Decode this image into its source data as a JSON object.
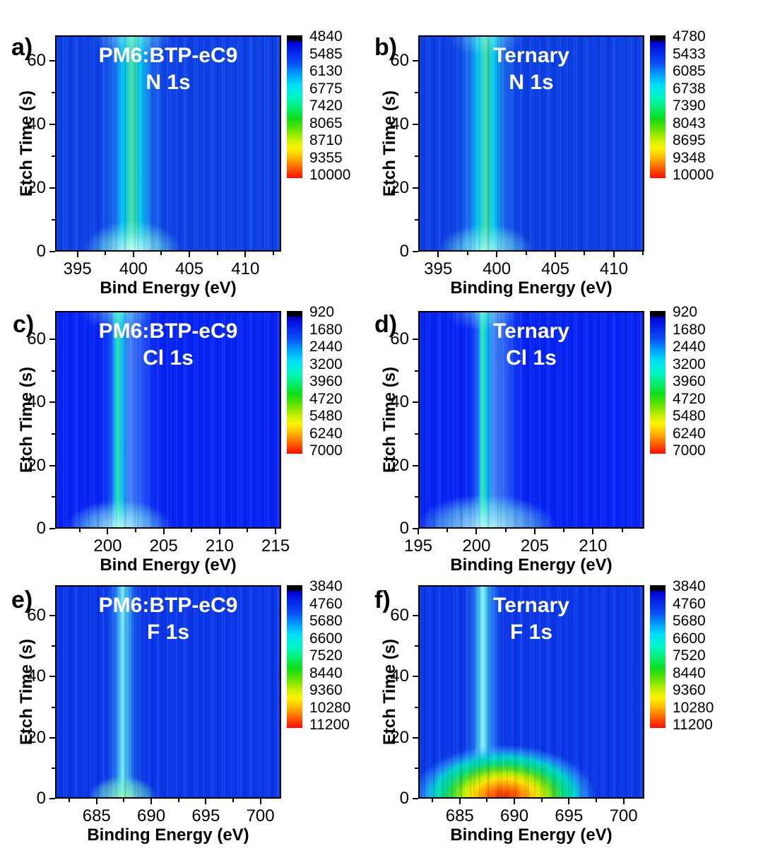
{
  "figure_type": "XPS depth-profile heatmap grid (6 panels)",
  "chart_data": [
    {
      "panel_label": "a)",
      "type": "heatmap",
      "title_line1": "PM6:BTP-eC9",
      "title_line2": "N 1s",
      "xlabel": "Bind Energy (eV)",
      "ylabel": "Etch Time (s)",
      "xlim": [
        393.0,
        413.2
      ],
      "xticks": [
        395,
        400,
        405,
        410
      ],
      "ylim": [
        0,
        68
      ],
      "yticks": [
        0,
        20,
        40,
        60
      ],
      "colorbar_ticks": [
        "4840",
        "5485",
        "6130",
        "6775",
        "7420",
        "8065",
        "8710",
        "9355",
        "10000"
      ],
      "colorbar_range": [
        4840,
        10000
      ],
      "palette": "blue(low) to cyan to green to yellow to orange to red(high), black cap at top of bar",
      "feature_band": {
        "center_ev": 399.8,
        "halo_width_ev": 4,
        "note": "cyan band with green core at all etch times, brightest pale-cyan near etch time 0-8 s"
      }
    },
    {
      "panel_label": "b)",
      "type": "heatmap",
      "title_line1": "Ternary",
      "title_line2": "N 1s",
      "xlabel": "Binding Energy (eV)",
      "ylabel": "Etch Time (s)",
      "xlim": [
        393.3,
        412.6
      ],
      "xticks": [
        395,
        400,
        405,
        410
      ],
      "ylim": [
        0,
        68
      ],
      "yticks": [
        0,
        20,
        40,
        60
      ],
      "colorbar_ticks": [
        "4780",
        "5433",
        "6085",
        "6738",
        "7390",
        "8043",
        "8695",
        "9348",
        "10000"
      ],
      "colorbar_range": [
        4780,
        10000
      ],
      "palette": "blue(low) to cyan to green to yellow to orange to red(high), black cap at top of bar",
      "feature_band": {
        "center_ev": 399.0,
        "halo_width_ev": 4,
        "note": "cyan band with green core spanning all etch times"
      }
    },
    {
      "panel_label": "c)",
      "type": "heatmap",
      "title_line1": "PM6:BTP-eC9",
      "title_line2": "Cl 1s",
      "xlabel": "Bind Energy (eV)",
      "ylabel": "Etch Time (s)",
      "xlim": [
        195.3,
        215.5
      ],
      "xticks": [
        200,
        205,
        210,
        215
      ],
      "ylim": [
        0,
        69
      ],
      "yticks": [
        0,
        20,
        40,
        60
      ],
      "colorbar_ticks": [
        "920",
        "1680",
        "2440",
        "3200",
        "3960",
        "4720",
        "5480",
        "6240",
        "7000"
      ],
      "colorbar_range": [
        920,
        7000
      ],
      "palette": "blue(low) to cyan to green to yellow to orange to red(high), black cap at top of bar",
      "feature_band": {
        "center_ev": 200.9,
        "halo_width_ev": 3,
        "note": "narrow green core with cyan halo extending toward 203 eV, brightest near etch time 0-8 s"
      }
    },
    {
      "panel_label": "d)",
      "type": "heatmap",
      "title_line1": "Ternary",
      "title_line2": "Cl 1s",
      "xlabel": "Binding Energy (eV)",
      "ylabel": "Etch Time (s)",
      "xlim": [
        195.0,
        214.4
      ],
      "xticks": [
        195,
        200,
        205,
        210
      ],
      "ylim": [
        0,
        69
      ],
      "yticks": [
        0,
        20,
        40,
        60
      ],
      "colorbar_ticks": [
        "920",
        "1680",
        "2440",
        "3200",
        "3960",
        "4720",
        "5480",
        "6240",
        "7000"
      ],
      "colorbar_range": [
        920,
        7000
      ],
      "palette": "blue(low) to cyan to green to yellow to orange to red(high), black cap at top of bar",
      "feature_band": {
        "center_ev": 200.8,
        "halo_width_ev": 3,
        "note": "green core with cyan halo, wider bright cyan blob near etch time 0-8 s"
      }
    },
    {
      "panel_label": "e)",
      "type": "heatmap",
      "title_line1": "PM6:BTP-eC9",
      "title_line2": "F 1s",
      "xlabel": "Binding Energy (eV)",
      "ylabel": "Etch Time (s)",
      "xlim": [
        681.2,
        701.9
      ],
      "xticks": [
        685,
        690,
        695,
        700
      ],
      "ylim": [
        0,
        70
      ],
      "yticks": [
        0,
        20,
        40,
        60
      ],
      "colorbar_ticks": [
        "3840",
        "4760",
        "5680",
        "6600",
        "7520",
        "8440",
        "9360",
        "10280",
        "11200"
      ],
      "colorbar_range": [
        3840,
        11200
      ],
      "palette": "blue(low) to cyan to green to yellow to orange to red(high), black cap at top of bar",
      "feature_band": {
        "center_ev": 687.3,
        "halo_width_ev": 2.5,
        "note": "bright cyan band at all etch times"
      },
      "hotspot": {
        "center_ev": 687.3,
        "etch_time_range_s": [
          0,
          4
        ],
        "intensity": "small green spot at surface"
      }
    },
    {
      "panel_label": "f)",
      "type": "heatmap",
      "title_line1": "Ternary",
      "title_line2": "F 1s",
      "xlabel": "Binding Energy (eV)",
      "ylabel": "Etch Time (s)",
      "xlim": [
        681.2,
        701.9
      ],
      "xticks": [
        685,
        690,
        695,
        700
      ],
      "ylim": [
        0,
        70
      ],
      "yticks": [
        0,
        20,
        40,
        60
      ],
      "colorbar_ticks": [
        "3840",
        "4760",
        "5680",
        "6600",
        "7520",
        "8440",
        "9360",
        "10280",
        "11200"
      ],
      "colorbar_range": [
        3840,
        11200
      ],
      "palette": "blue(low) to cyan to green to yellow to orange to red(high), black cap at top of bar",
      "feature_band": {
        "center_ev": 687.0,
        "halo_width_ev": 2.5,
        "note": "bright cyan band at all etch times"
      },
      "hotspot": {
        "center_ev": 689.1,
        "etch_time_range_s": [
          0,
          9
        ],
        "intensity": "intense surface peak, red/orange core reaching colorbar maximum"
      }
    }
  ]
}
